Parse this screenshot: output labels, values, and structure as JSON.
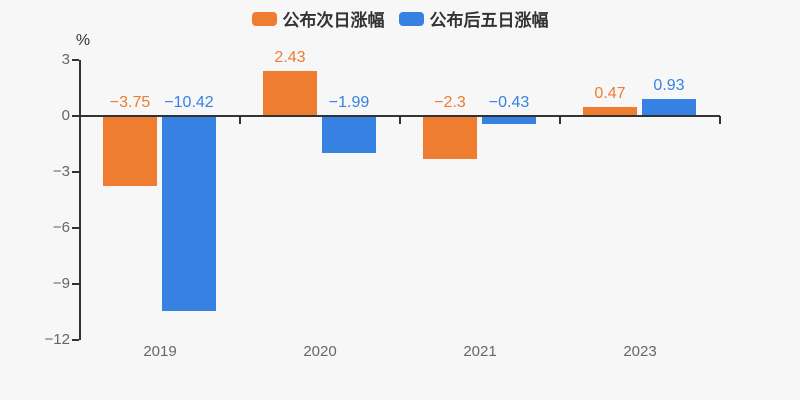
{
  "colors": {
    "background": "#f7f7f8",
    "axis": "#333333",
    "tick_label": "#666666",
    "legend_text": "#333333",
    "series_orange": "#ee7c31",
    "series_blue": "#3781e3"
  },
  "chart_data": {
    "type": "bar",
    "categories": [
      "2019",
      "2020",
      "2021",
      "2023"
    ],
    "series": [
      {
        "name": "公布次日涨幅",
        "color": "#ee7c31",
        "values": [
          -3.75,
          2.43,
          -2.3,
          0.47
        ]
      },
      {
        "name": "公布后五日涨幅",
        "color": "#3781e3",
        "values": [
          -10.42,
          -1.99,
          -0.43,
          0.93
        ]
      }
    ],
    "ylabel": "%",
    "yticks": [
      3,
      0,
      -3,
      -6,
      -9,
      -12
    ],
    "ylim": [
      -12,
      3
    ],
    "legend_position": "top-center",
    "grid": false,
    "value_labels": true
  }
}
